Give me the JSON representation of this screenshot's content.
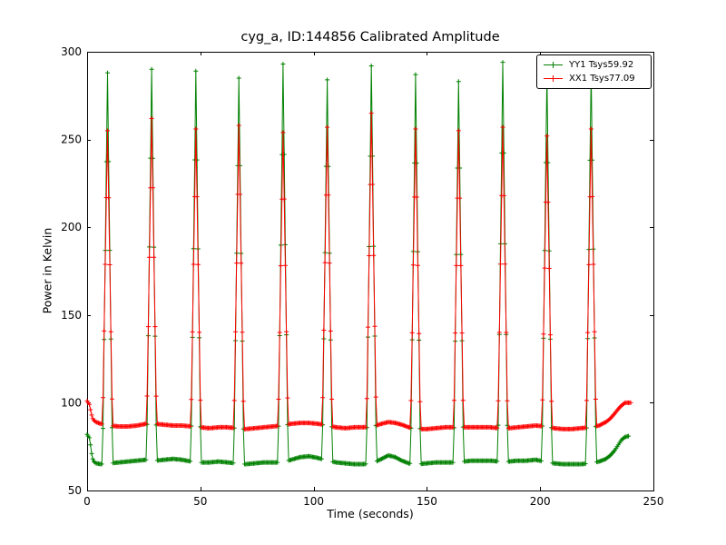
{
  "chart_data": {
    "type": "line",
    "title": "cyg_a, ID:144856 Calibrated Amplitude",
    "xlabel": "Time (seconds)",
    "ylabel": "Power in Kelvin",
    "xlim": [
      0,
      250
    ],
    "ylim": [
      50,
      300
    ],
    "xticks": [
      0,
      50,
      100,
      150,
      200,
      250
    ],
    "yticks": [
      50,
      100,
      150,
      200,
      250,
      300
    ],
    "grid": false,
    "legend_position": "upper right",
    "marker": "+",
    "sample_step": 0.5,
    "spike_half_width": 2.2,
    "spike_times": [
      9,
      28.5,
      48,
      67,
      86.5,
      106,
      125.5,
      145,
      164,
      183.5,
      203,
      222.5
    ],
    "series": [
      {
        "name": "YY1 Tsys59.92",
        "color": "#008000",
        "x_start": 0,
        "x_end": 239,
        "peaks": [
          288,
          290,
          289,
          285,
          293,
          284,
          292,
          287,
          283,
          294,
          287,
          289
        ],
        "baseline_points": [
          [
            0,
            82
          ],
          [
            0.5,
            81
          ],
          [
            1,
            80
          ],
          [
            1.5,
            76
          ],
          [
            2,
            71
          ],
          [
            2.5,
            68
          ],
          [
            3,
            66.5
          ],
          [
            4,
            65.5
          ],
          [
            6,
            65
          ],
          [
            10,
            65.5
          ],
          [
            14,
            66
          ],
          [
            18,
            66.5
          ],
          [
            22,
            67
          ],
          [
            26,
            67.5
          ],
          [
            30,
            67
          ],
          [
            34,
            67.5
          ],
          [
            38,
            68
          ],
          [
            42,
            67.5
          ],
          [
            46,
            66.5
          ],
          [
            50,
            66
          ],
          [
            54,
            66
          ],
          [
            58,
            66.5
          ],
          [
            62,
            66
          ],
          [
            66,
            65.5
          ],
          [
            70,
            65
          ],
          [
            74,
            65.5
          ],
          [
            78,
            66
          ],
          [
            82,
            66
          ],
          [
            86,
            66
          ],
          [
            90,
            67.5
          ],
          [
            94,
            69
          ],
          [
            98,
            69.5
          ],
          [
            102,
            68.5
          ],
          [
            106,
            67
          ],
          [
            110,
            66
          ],
          [
            114,
            65.5
          ],
          [
            118,
            65
          ],
          [
            122,
            65
          ],
          [
            126,
            65.5
          ],
          [
            130,
            68
          ],
          [
            133,
            70
          ],
          [
            136,
            69
          ],
          [
            139,
            67
          ],
          [
            142,
            65.5
          ],
          [
            146,
            65
          ],
          [
            150,
            65.5
          ],
          [
            154,
            66
          ],
          [
            158,
            66
          ],
          [
            162,
            66
          ],
          [
            166,
            66.5
          ],
          [
            170,
            67
          ],
          [
            174,
            67
          ],
          [
            178,
            67
          ],
          [
            182,
            66.5
          ],
          [
            186,
            66.5
          ],
          [
            190,
            67
          ],
          [
            194,
            67
          ],
          [
            198,
            67.5
          ],
          [
            202,
            66.5
          ],
          [
            206,
            65.5
          ],
          [
            210,
            65
          ],
          [
            214,
            65
          ],
          [
            218,
            65
          ],
          [
            222,
            65.5
          ],
          [
            226,
            66.5
          ],
          [
            229,
            68
          ],
          [
            231,
            70
          ],
          [
            233,
            73
          ],
          [
            234.5,
            76
          ],
          [
            236,
            79
          ],
          [
            237.5,
            80.5
          ],
          [
            239,
            81
          ]
        ]
      },
      {
        "name": "XX1 Tsys77.09",
        "color": "#ff0000",
        "x_start": 0,
        "x_end": 240,
        "peaks": [
          255,
          262,
          256,
          258,
          254,
          257,
          265,
          256,
          255,
          257,
          252,
          256
        ],
        "baseline_points": [
          [
            0,
            101
          ],
          [
            0.5,
            100
          ],
          [
            1,
            99
          ],
          [
            1.5,
            96
          ],
          [
            2,
            93
          ],
          [
            2.5,
            91
          ],
          [
            3,
            90
          ],
          [
            4,
            89
          ],
          [
            6,
            88
          ],
          [
            10,
            87
          ],
          [
            14,
            86.5
          ],
          [
            18,
            86.5
          ],
          [
            22,
            87
          ],
          [
            26,
            88
          ],
          [
            30,
            88
          ],
          [
            34,
            87.5
          ],
          [
            38,
            87
          ],
          [
            42,
            87
          ],
          [
            46,
            86.5
          ],
          [
            50,
            86
          ],
          [
            54,
            85.5
          ],
          [
            58,
            86
          ],
          [
            62,
            86
          ],
          [
            66,
            85.5
          ],
          [
            70,
            85
          ],
          [
            74,
            85.5
          ],
          [
            78,
            86
          ],
          [
            82,
            86.5
          ],
          [
            86,
            87
          ],
          [
            90,
            88
          ],
          [
            94,
            88.5
          ],
          [
            98,
            88.5
          ],
          [
            102,
            88
          ],
          [
            106,
            87
          ],
          [
            110,
            86
          ],
          [
            114,
            85.5
          ],
          [
            118,
            86
          ],
          [
            122,
            86
          ],
          [
            126,
            86.5
          ],
          [
            130,
            88
          ],
          [
            133,
            89
          ],
          [
            136,
            88.5
          ],
          [
            139,
            87.5
          ],
          [
            142,
            86
          ],
          [
            146,
            85
          ],
          [
            150,
            85
          ],
          [
            154,
            85.5
          ],
          [
            158,
            86
          ],
          [
            162,
            86
          ],
          [
            166,
            86
          ],
          [
            170,
            86
          ],
          [
            174,
            86
          ],
          [
            178,
            86
          ],
          [
            182,
            85.5
          ],
          [
            186,
            85.5
          ],
          [
            190,
            86
          ],
          [
            194,
            86.5
          ],
          [
            198,
            87
          ],
          [
            202,
            86.5
          ],
          [
            206,
            85.5
          ],
          [
            210,
            85
          ],
          [
            214,
            85
          ],
          [
            218,
            85.5
          ],
          [
            222,
            86
          ],
          [
            226,
            87
          ],
          [
            229,
            89
          ],
          [
            231,
            91
          ],
          [
            233,
            94
          ],
          [
            234.5,
            96.5
          ],
          [
            236,
            98.5
          ],
          [
            237.5,
            100
          ],
          [
            240,
            100
          ]
        ]
      }
    ]
  }
}
